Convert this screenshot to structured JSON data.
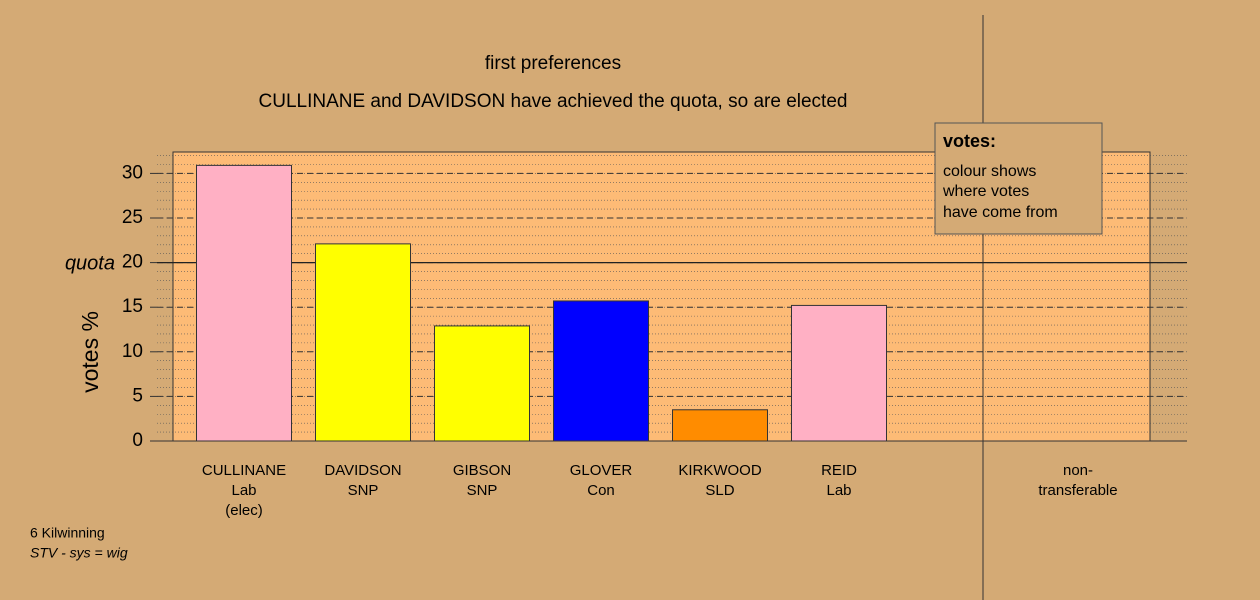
{
  "chart_data": {
    "type": "bar",
    "title": "first preferences",
    "subtitle": "CULLINANE and DAVIDSON have achieved the quota, so are elected",
    "ylabel": "votes %",
    "categories": [
      [
        "CULLINANE",
        "Lab",
        "(elec)"
      ],
      [
        "DAVIDSON",
        "SNP"
      ],
      [
        "GIBSON",
        "SNP"
      ],
      [
        "GLOVER",
        "Con"
      ],
      [
        "KIRKWOOD",
        "SLD"
      ],
      [
        "REID",
        "Lab"
      ],
      [
        "non-",
        "transferable"
      ]
    ],
    "values": [
      30.9,
      22.1,
      12.9,
      15.7,
      3.5,
      15.2,
      null
    ],
    "colors": [
      "#ffb0c4",
      "#ffff00",
      "#ffff00",
      "#0000ff",
      "#ff8c00",
      "#ffb0c4",
      null
    ],
    "ylim": [
      0,
      32.4
    ],
    "yticks": [
      0,
      5,
      10,
      15,
      {
        "value": 20,
        "label": "20"
      },
      25,
      30
    ],
    "quota": {
      "label": "quota",
      "value": 20
    },
    "minor_grid": 1,
    "legend": {
      "title": "votes:",
      "lines": [
        "colour shows",
        "where votes",
        "have come from"
      ]
    },
    "footer": [
      "6 Kilwinning",
      "STV - sys = wig"
    ]
  }
}
